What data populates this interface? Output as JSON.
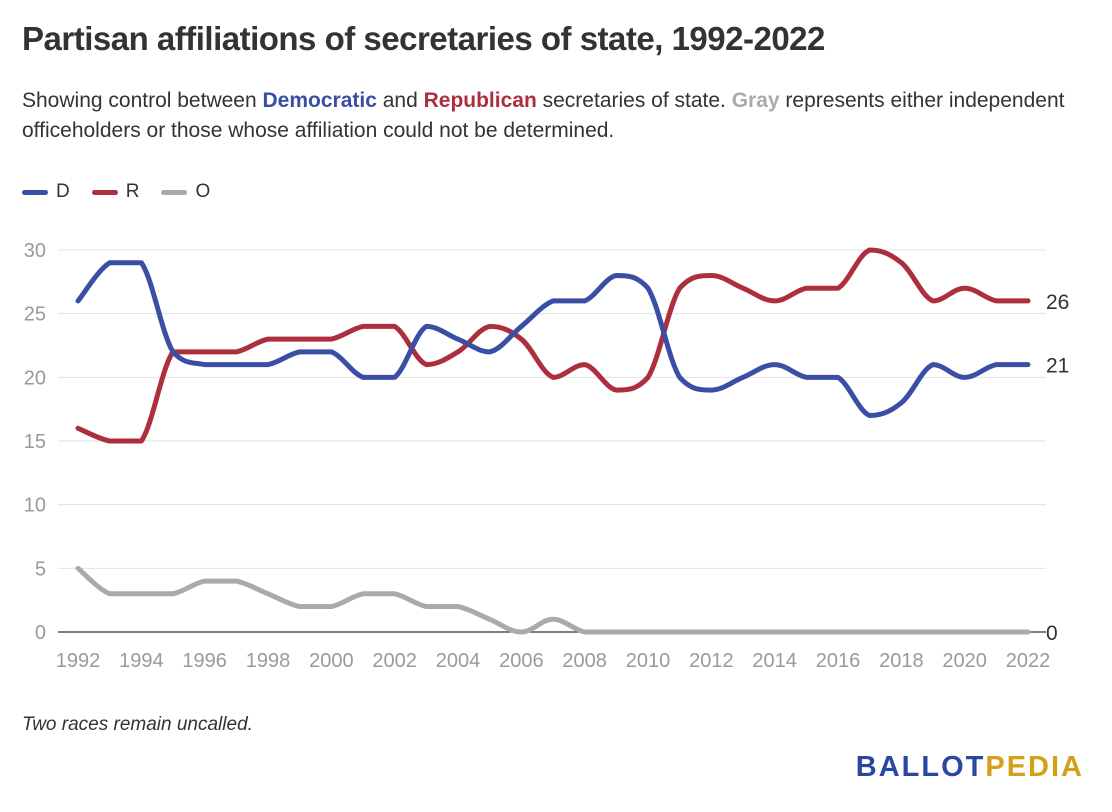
{
  "title": "Partisan affiliations of secretaries of state, 1992-2022",
  "subtitle": {
    "part1": "Showing control between ",
    "democratic": "Democratic",
    "part2": " and ",
    "republican": "Republican",
    "part3": " secretaries of state. ",
    "gray": "Gray",
    "part4": " represents either independent officeholders or those whose affiliation could not be determined."
  },
  "note": "Two races remain uncalled.",
  "logo": {
    "part1": "BALLOT",
    "part2": "PEDIA"
  },
  "colors": {
    "D": "#3a4ea6",
    "R": "#ad2f3d",
    "O": "#aaaaaa",
    "logo_blue": "#2b48a0",
    "logo_gold": "#d4a017"
  },
  "chart_data": {
    "type": "line",
    "title": "Partisan affiliations of secretaries of state, 1992-2022",
    "xlabel": "",
    "ylabel": "",
    "x": [
      1992,
      1993,
      1994,
      1995,
      1996,
      1997,
      1998,
      1999,
      2000,
      2001,
      2002,
      2003,
      2004,
      2005,
      2006,
      2007,
      2008,
      2009,
      2010,
      2011,
      2012,
      2013,
      2014,
      2015,
      2016,
      2017,
      2018,
      2019,
      2020,
      2021,
      2022
    ],
    "x_ticks": [
      "1992",
      "1994",
      "1996",
      "1998",
      "2000",
      "2002",
      "2004",
      "2006",
      "2008",
      "2010",
      "2012",
      "2014",
      "2016",
      "2018",
      "2020",
      "2022"
    ],
    "y_ticks": [
      "0",
      "5",
      "10",
      "15",
      "20",
      "25",
      "30"
    ],
    "ylim": [
      0,
      30
    ],
    "grid": true,
    "legend_position": "top-left",
    "series": [
      {
        "name": "D",
        "color": "#3a4ea6",
        "end_label": "21",
        "values": [
          26,
          29,
          29,
          22,
          21,
          21,
          21,
          22,
          22,
          20,
          20,
          24,
          23,
          22,
          24,
          26,
          26,
          28,
          27,
          20,
          19,
          20,
          21,
          20,
          20,
          17,
          18,
          21,
          20,
          21,
          21
        ]
      },
      {
        "name": "R",
        "color": "#ad2f3d",
        "end_label": "26",
        "values": [
          16,
          15,
          15,
          22,
          22,
          22,
          23,
          23,
          23,
          24,
          24,
          21,
          22,
          24,
          23,
          20,
          21,
          19,
          20,
          27,
          28,
          27,
          26,
          27,
          27,
          30,
          29,
          26,
          27,
          26,
          26
        ]
      },
      {
        "name": "O",
        "color": "#aaaaaa",
        "end_label": "0",
        "values": [
          5,
          3,
          3,
          3,
          4,
          4,
          3,
          2,
          2,
          3,
          3,
          2,
          2,
          1,
          0,
          1,
          0,
          0,
          0,
          0,
          0,
          0,
          0,
          0,
          0,
          0,
          0,
          0,
          0,
          0,
          0
        ]
      }
    ]
  }
}
